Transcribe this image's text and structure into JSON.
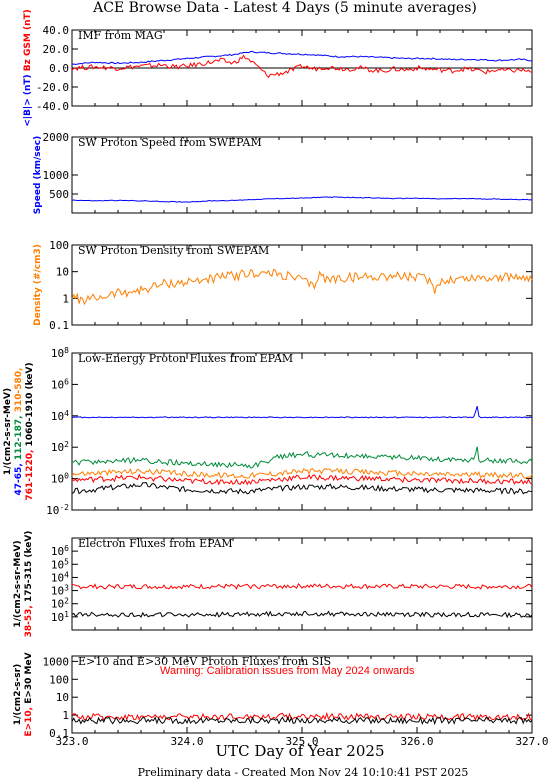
{
  "header": "ACE Browse Data - Latest 4 Days (5 minute averages)",
  "x_axis_title": "UTC Day of Year 2025",
  "footer": "Preliminary data - Created Mon Nov 24 10:10:41 PST 2025",
  "x_ticks": [
    "323.0",
    "324.0",
    "325.0",
    "326.0",
    "327.0"
  ],
  "colors": {
    "blue": "#0000ff",
    "red": "#ff0000",
    "orange": "#ff7f00",
    "green": "#008b3a",
    "black": "#000000"
  },
  "warning": "Warning: Calibration issues from May 2024 onwards",
  "chart_data": [
    {
      "type": "line",
      "title": "IMF from MAG",
      "xlim": [
        323.0,
        327.0
      ],
      "ylim": [
        -40,
        40
      ],
      "yscale": "linear",
      "yticks": [
        "40.0",
        "20.0",
        "0.0",
        "-20.0",
        "-40.0"
      ],
      "ylabel_parts": [
        {
          "text": "<|B|> (nT)",
          "color": "#0000ff"
        },
        {
          "text": "Bz GSM (nT)",
          "color": "#ff0000"
        }
      ],
      "series": [
        {
          "name": "<|B|>",
          "color": "#0000ff",
          "x": [
            323.0,
            323.2,
            323.4,
            323.6,
            323.8,
            324.0,
            324.2,
            324.4,
            324.55,
            324.7,
            324.9,
            325.1,
            325.3,
            325.5,
            325.7,
            325.9,
            326.1,
            326.3,
            326.5,
            326.7,
            326.9,
            327.0
          ],
          "y": [
            4,
            6,
            5,
            6,
            8,
            10,
            12,
            14,
            17,
            16,
            15,
            14,
            12,
            12,
            11,
            10,
            10,
            9,
            9,
            8,
            9,
            8
          ]
        },
        {
          "name": "Bz GSM",
          "color": "#ff0000",
          "x": [
            323.0,
            323.2,
            323.4,
            323.6,
            323.8,
            323.9,
            324.0,
            324.1,
            324.2,
            324.3,
            324.4,
            324.5,
            324.6,
            324.7,
            324.8,
            324.9,
            325.0,
            325.1,
            325.2,
            325.3,
            325.4,
            325.5,
            325.6,
            325.7,
            325.8,
            325.9,
            326.0,
            326.1,
            326.2,
            326.3,
            326.4,
            326.5,
            326.6,
            326.7,
            326.8,
            326.9,
            327.0
          ],
          "y": [
            0,
            1,
            0,
            2,
            3,
            1,
            2,
            4,
            6,
            8,
            5,
            12,
            3,
            -8,
            -6,
            -3,
            2,
            -1,
            1,
            0,
            -1,
            0,
            -2,
            -3,
            -1,
            -2,
            0,
            -1,
            -2,
            -3,
            -1,
            -2,
            -4,
            -2,
            -3,
            -2,
            -4
          ]
        }
      ]
    },
    {
      "type": "line",
      "title": "SW Proton Speed from SWEPAM",
      "xlim": [
        323.0,
        327.0
      ],
      "ylim": [
        0,
        2000
      ],
      "yscale": "linear",
      "yticks": [
        "2000",
        "1000",
        "500"
      ],
      "ylabel_parts": [
        {
          "text": "Speed (km/sec)",
          "color": "#0000ff"
        }
      ],
      "series": [
        {
          "name": "Speed",
          "color": "#0000ff",
          "x": [
            323.0,
            323.2,
            323.4,
            323.6,
            323.8,
            324.0,
            324.2,
            324.4,
            324.6,
            324.8,
            325.0,
            325.2,
            325.4,
            325.6,
            325.8,
            326.0,
            326.2,
            326.4,
            326.6,
            326.8,
            327.0
          ],
          "y": [
            340,
            320,
            330,
            320,
            300,
            290,
            320,
            330,
            360,
            380,
            390,
            420,
            410,
            400,
            380,
            390,
            370,
            380,
            370,
            360,
            350
          ]
        }
      ]
    },
    {
      "type": "line",
      "title": "SW Proton Density from SWEPAM",
      "xlim": [
        323.0,
        327.0
      ],
      "ylim": [
        0.1,
        100
      ],
      "yscale": "log",
      "yticks": [
        "100",
        "10",
        "1",
        "0.1"
      ],
      "ylabel_parts": [
        {
          "text": "Density (#/cm3)",
          "color": "#ff7f00"
        }
      ],
      "series": [
        {
          "name": "Density",
          "color": "#ff7f00",
          "x": [
            323.0,
            323.1,
            323.2,
            323.4,
            323.6,
            323.8,
            324.0,
            324.2,
            324.4,
            324.6,
            324.8,
            325.0,
            325.1,
            325.15,
            325.2,
            325.4,
            325.6,
            325.8,
            326.0,
            326.1,
            326.15,
            326.2,
            326.4,
            326.6,
            326.8,
            327.0
          ],
          "y": [
            1.2,
            0.8,
            1.0,
            1.6,
            2.0,
            3.5,
            4.0,
            5.5,
            7.0,
            9.0,
            8.0,
            5.0,
            2.5,
            9.0,
            5.0,
            6.0,
            6.5,
            7.0,
            6.0,
            5.0,
            2.0,
            4.5,
            5.5,
            6.0,
            6.0,
            6.5
          ]
        }
      ]
    },
    {
      "type": "line",
      "title": "Low-Energy Proton Fluxes from EPAM",
      "xlim": [
        323.0,
        327.0
      ],
      "ylim": [
        0.01,
        100000000
      ],
      "yscale": "log",
      "yticks": [
        "10^8",
        "10^6",
        "10^4",
        "10^2",
        "10^0",
        "10^-2"
      ],
      "ylabel_lines": [
        [
          {
            "text": "1/(cm2-s-sr-MeV)",
            "color": "#000000"
          }
        ],
        [
          {
            "text": "47-65,",
            "color": "#0000ff"
          },
          {
            "text": "112-187,",
            "color": "#008b3a"
          },
          {
            "text": "310-580,",
            "color": "#ff7f00"
          }
        ],
        [
          {
            "text": "761-1220,",
            "color": "#ff0000"
          },
          {
            "text": "1060-1910 (keV)",
            "color": "#000000"
          }
        ]
      ],
      "series": [
        {
          "name": "47-65",
          "color": "#0000ff",
          "x": [
            323.0,
            324.0,
            325.0,
            326.0,
            326.5,
            326.52,
            326.54,
            327.0
          ],
          "y": [
            8000,
            8000,
            8000,
            8000,
            8000,
            60000,
            8000,
            8000
          ]
        },
        {
          "name": "112-187",
          "color": "#008b3a",
          "x": [
            323.0,
            323.6,
            323.9,
            324.2,
            324.6,
            324.8,
            325.0,
            325.3,
            325.6,
            326.0,
            326.4,
            326.5,
            326.52,
            326.54,
            327.0
          ],
          "y": [
            10,
            15,
            10,
            8,
            7,
            25,
            35,
            30,
            25,
            20,
            15,
            15,
            120,
            15,
            12
          ]
        },
        {
          "name": "310-580",
          "color": "#ff7f00",
          "x": [
            323.0,
            323.6,
            324.0,
            324.5,
            325.0,
            325.3,
            325.6,
            326.0,
            326.5,
            327.0
          ],
          "y": [
            2,
            3,
            2,
            1.5,
            3,
            3,
            2.5,
            2,
            1.8,
            1.5
          ]
        },
        {
          "name": "761-1220",
          "color": "#ff0000",
          "x": [
            323.0,
            323.6,
            324.0,
            324.5,
            325.0,
            325.3,
            325.6,
            326.0,
            326.5,
            327.0
          ],
          "y": [
            0.8,
            1.2,
            0.7,
            0.6,
            1.2,
            1.1,
            1.0,
            0.8,
            0.7,
            0.6
          ]
        },
        {
          "name": "1060-1910",
          "color": "#000000",
          "x": [
            323.0,
            323.6,
            324.0,
            324.5,
            325.0,
            325.3,
            325.6,
            326.0,
            326.5,
            327.0
          ],
          "y": [
            0.15,
            0.4,
            0.2,
            0.15,
            0.3,
            0.3,
            0.25,
            0.2,
            0.18,
            0.15
          ]
        }
      ]
    },
    {
      "type": "line",
      "title": "Electron Fluxes from EPAM",
      "xlim": [
        323.0,
        327.0
      ],
      "ylim": [
        1,
        10000000
      ],
      "yscale": "log",
      "yticks": [
        "10^6",
        "10^5",
        "10^4",
        "10^3",
        "10^2",
        "10^1"
      ],
      "ylabel_lines": [
        [
          {
            "text": "1/(cm2-s-sr-MeV)",
            "color": "#000000"
          }
        ],
        [
          {
            "text": "38-53,",
            "color": "#ff0000"
          },
          {
            "text": "175-315 (keV)",
            "color": "#000000"
          }
        ]
      ],
      "series": [
        {
          "name": "38-53",
          "color": "#ff0000",
          "x": [
            323.0,
            324.0,
            325.0,
            326.0,
            327.0
          ],
          "y": [
            2000,
            2000,
            2200,
            2000,
            2000
          ]
        },
        {
          "name": "175-315",
          "color": "#000000",
          "x": [
            323.0,
            324.0,
            325.0,
            326.0,
            327.0
          ],
          "y": [
            15,
            14,
            18,
            15,
            14
          ]
        }
      ]
    },
    {
      "type": "line",
      "title": "E>10 and E>30 MeV Proton Fluxes from SIS",
      "xlim": [
        323.0,
        327.0
      ],
      "ylim": [
        0.1,
        2000
      ],
      "yscale": "log",
      "yticks": [
        "1000",
        "100",
        "10",
        "1",
        "0.1"
      ],
      "ylabel_lines": [
        [
          {
            "text": "1/(cm2-s-sr)",
            "color": "#000000"
          }
        ],
        [
          {
            "text": "E>10,",
            "color": "#ff0000"
          },
          {
            "text": "E>30 MeV",
            "color": "#000000"
          }
        ]
      ],
      "series": [
        {
          "name": "E>10",
          "color": "#ff0000",
          "x": [
            323.0,
            324.0,
            325.0,
            326.0,
            327.0
          ],
          "y": [
            0.8,
            0.8,
            0.85,
            0.8,
            0.8
          ]
        },
        {
          "name": "E>30",
          "color": "#000000",
          "x": [
            323.0,
            324.0,
            325.0,
            326.0,
            327.0
          ],
          "y": [
            0.5,
            0.5,
            0.5,
            0.5,
            0.5
          ]
        }
      ]
    }
  ]
}
